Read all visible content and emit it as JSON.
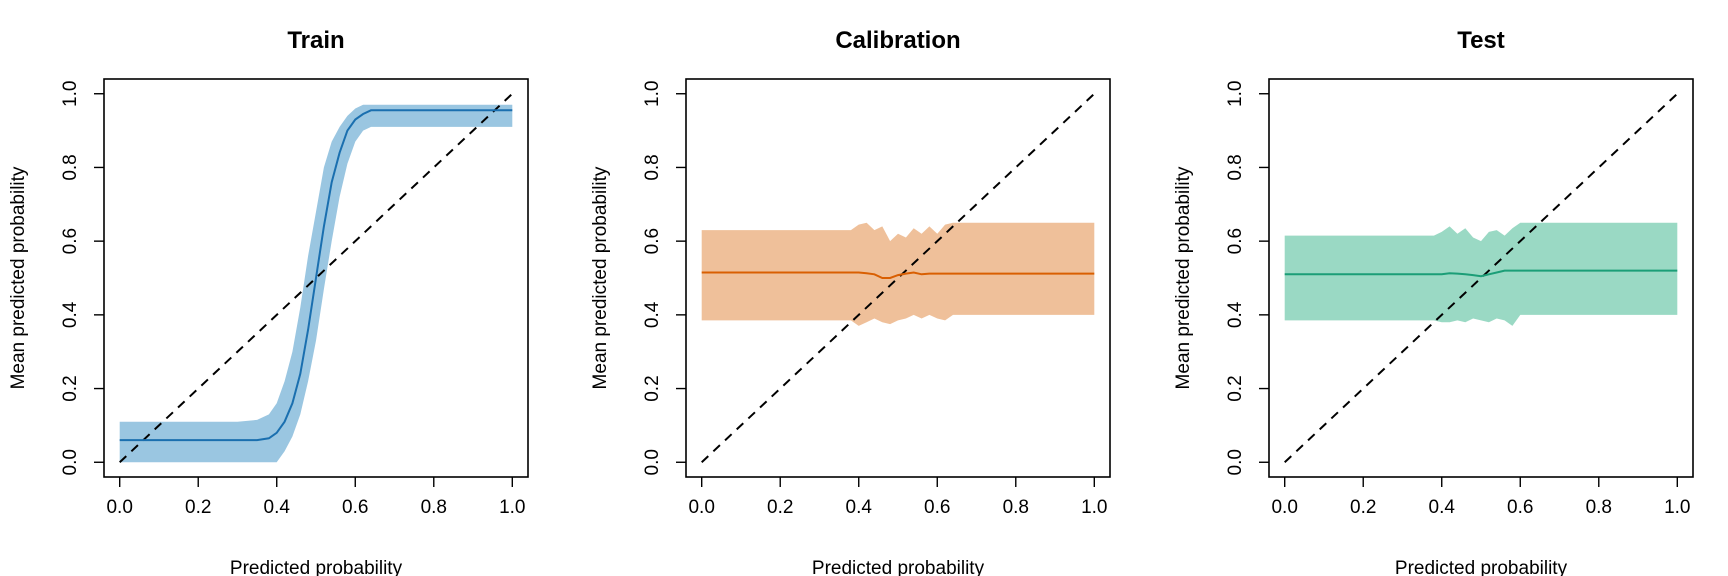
{
  "chart_data": [
    {
      "type": "line",
      "title": "Train",
      "xlabel": "Predicted probability",
      "ylabel": "Mean predicted probability",
      "xlim": [
        0,
        1
      ],
      "ylim": [
        0,
        1
      ],
      "xticks": [
        "0.0",
        "0.2",
        "0.4",
        "0.6",
        "0.8",
        "1.0"
      ],
      "yticks": [
        "0.0",
        "0.2",
        "0.4",
        "0.6",
        "0.8",
        "1.0"
      ],
      "reference_line": {
        "x": [
          0,
          1
        ],
        "y": [
          0,
          1
        ],
        "style": "dashed"
      },
      "line_color": "#1a6faf",
      "band_color": "#9ac6e1",
      "x": [
        0.0,
        0.1,
        0.2,
        0.3,
        0.35,
        0.38,
        0.4,
        0.42,
        0.44,
        0.46,
        0.48,
        0.5,
        0.52,
        0.54,
        0.56,
        0.58,
        0.6,
        0.62,
        0.64,
        0.66,
        0.7,
        0.8,
        0.9,
        1.0
      ],
      "y": [
        0.06,
        0.06,
        0.06,
        0.06,
        0.06,
        0.065,
        0.08,
        0.11,
        0.16,
        0.24,
        0.36,
        0.5,
        0.64,
        0.76,
        0.84,
        0.9,
        0.93,
        0.945,
        0.955,
        0.955,
        0.955,
        0.955,
        0.955,
        0.955
      ],
      "lower": [
        0.0,
        0.0,
        0.0,
        0.0,
        0.0,
        0.0,
        0.0,
        0.03,
        0.07,
        0.13,
        0.22,
        0.33,
        0.47,
        0.6,
        0.72,
        0.81,
        0.87,
        0.9,
        0.91,
        0.91,
        0.91,
        0.91,
        0.91,
        0.91
      ],
      "upper": [
        0.11,
        0.11,
        0.11,
        0.11,
        0.115,
        0.13,
        0.16,
        0.22,
        0.3,
        0.42,
        0.56,
        0.68,
        0.8,
        0.87,
        0.91,
        0.94,
        0.96,
        0.97,
        0.97,
        0.97,
        0.97,
        0.97,
        0.97,
        0.97
      ]
    },
    {
      "type": "line",
      "title": "Calibration",
      "xlabel": "Predicted probability",
      "ylabel": "Mean predicted probability",
      "xlim": [
        0,
        1
      ],
      "ylim": [
        0,
        1
      ],
      "xticks": [
        "0.0",
        "0.2",
        "0.4",
        "0.6",
        "0.8",
        "1.0"
      ],
      "yticks": [
        "0.0",
        "0.2",
        "0.4",
        "0.6",
        "0.8",
        "1.0"
      ],
      "reference_line": {
        "x": [
          0,
          1
        ],
        "y": [
          0,
          1
        ],
        "style": "dashed"
      },
      "line_color": "#d95f02",
      "band_color": "#efc09a",
      "x": [
        0.0,
        0.1,
        0.2,
        0.3,
        0.38,
        0.4,
        0.42,
        0.44,
        0.46,
        0.48,
        0.5,
        0.52,
        0.54,
        0.56,
        0.58,
        0.6,
        0.62,
        0.64,
        0.7,
        0.8,
        0.9,
        1.0
      ],
      "y": [
        0.515,
        0.515,
        0.515,
        0.515,
        0.515,
        0.515,
        0.513,
        0.51,
        0.5,
        0.5,
        0.508,
        0.512,
        0.515,
        0.51,
        0.512,
        0.512,
        0.512,
        0.512,
        0.512,
        0.512,
        0.512,
        0.512
      ],
      "lower": [
        0.385,
        0.385,
        0.385,
        0.385,
        0.385,
        0.37,
        0.38,
        0.39,
        0.38,
        0.375,
        0.385,
        0.39,
        0.4,
        0.39,
        0.4,
        0.39,
        0.385,
        0.4,
        0.4,
        0.4,
        0.4,
        0.4
      ],
      "upper": [
        0.63,
        0.63,
        0.63,
        0.63,
        0.63,
        0.645,
        0.65,
        0.63,
        0.64,
        0.6,
        0.62,
        0.61,
        0.635,
        0.62,
        0.64,
        0.62,
        0.645,
        0.65,
        0.65,
        0.65,
        0.65,
        0.65
      ]
    },
    {
      "type": "line",
      "title": "Test",
      "xlabel": "Predicted probability",
      "ylabel": "Mean predicted probability",
      "xlim": [
        0,
        1
      ],
      "ylim": [
        0,
        1
      ],
      "xticks": [
        "0.0",
        "0.2",
        "0.4",
        "0.6",
        "0.8",
        "1.0"
      ],
      "yticks": [
        "0.0",
        "0.2",
        "0.4",
        "0.6",
        "0.8",
        "1.0"
      ],
      "reference_line": {
        "x": [
          0,
          1
        ],
        "y": [
          0,
          1
        ],
        "style": "dashed"
      },
      "line_color": "#1b9e77",
      "band_color": "#9ad9c4",
      "x": [
        0.0,
        0.1,
        0.2,
        0.3,
        0.38,
        0.4,
        0.42,
        0.44,
        0.46,
        0.48,
        0.5,
        0.52,
        0.54,
        0.56,
        0.58,
        0.6,
        0.7,
        0.8,
        0.9,
        1.0
      ],
      "y": [
        0.51,
        0.51,
        0.51,
        0.51,
        0.51,
        0.51,
        0.513,
        0.512,
        0.51,
        0.508,
        0.505,
        0.51,
        0.515,
        0.52,
        0.52,
        0.52,
        0.52,
        0.52,
        0.52,
        0.52
      ],
      "lower": [
        0.385,
        0.385,
        0.385,
        0.385,
        0.385,
        0.38,
        0.38,
        0.385,
        0.38,
        0.39,
        0.385,
        0.38,
        0.39,
        0.385,
        0.37,
        0.4,
        0.4,
        0.4,
        0.4,
        0.4
      ],
      "upper": [
        0.615,
        0.615,
        0.615,
        0.615,
        0.615,
        0.625,
        0.64,
        0.62,
        0.635,
        0.61,
        0.6,
        0.625,
        0.63,
        0.615,
        0.635,
        0.65,
        0.65,
        0.65,
        0.65,
        0.65
      ]
    }
  ]
}
